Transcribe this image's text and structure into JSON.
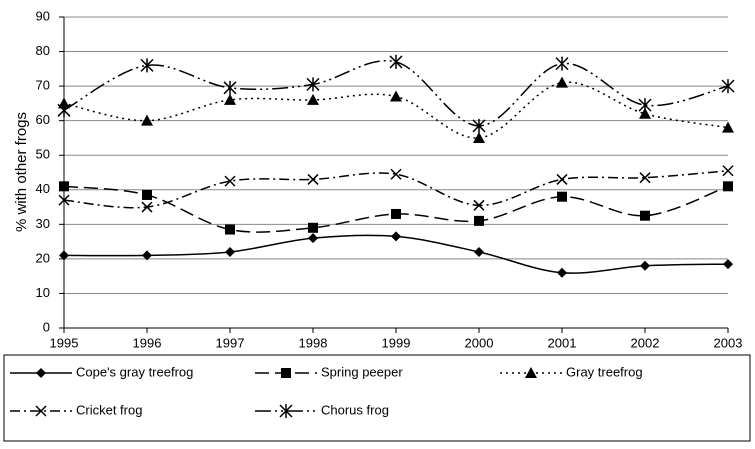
{
  "chart_data": {
    "type": "line",
    "y_label": "% with other frogs",
    "categories": [
      "1995",
      "1996",
      "1997",
      "1998",
      "1999",
      "2000",
      "2001",
      "2002",
      "2003"
    ],
    "ylim": [
      0,
      90
    ],
    "yticks": [
      0,
      10,
      20,
      30,
      40,
      50,
      60,
      70,
      80,
      90
    ],
    "grid": true,
    "series": [
      {
        "name": "Cope's gray treefrog",
        "color": "#000000",
        "marker": "diamond",
        "dash": "solid",
        "values": [
          21,
          21,
          22,
          26,
          26.5,
          22,
          16,
          18,
          18.5
        ]
      },
      {
        "name": "Spring peeper",
        "color": "#000000",
        "marker": "square",
        "dash": "dashed",
        "values": [
          41,
          38.5,
          28.5,
          29,
          33,
          31,
          38,
          32.5,
          41
        ]
      },
      {
        "name": "Gray treefrog",
        "color": "#000000",
        "marker": "triangle",
        "dash": "dotted",
        "values": [
          65,
          60,
          66,
          66,
          67,
          55,
          71,
          62,
          58
        ]
      },
      {
        "name": "Cricket frog",
        "color": "#000000",
        "marker": "x",
        "dash": "dashdot",
        "values": [
          37,
          35,
          42.5,
          43,
          44.5,
          35.5,
          43,
          43.5,
          45.5
        ]
      },
      {
        "name": "Chorus frog",
        "color": "#000000",
        "marker": "star",
        "dash": "longdashdot",
        "values": [
          63,
          76,
          69.5,
          70.5,
          77,
          58.5,
          76.5,
          64.5,
          70
        ]
      }
    ]
  }
}
